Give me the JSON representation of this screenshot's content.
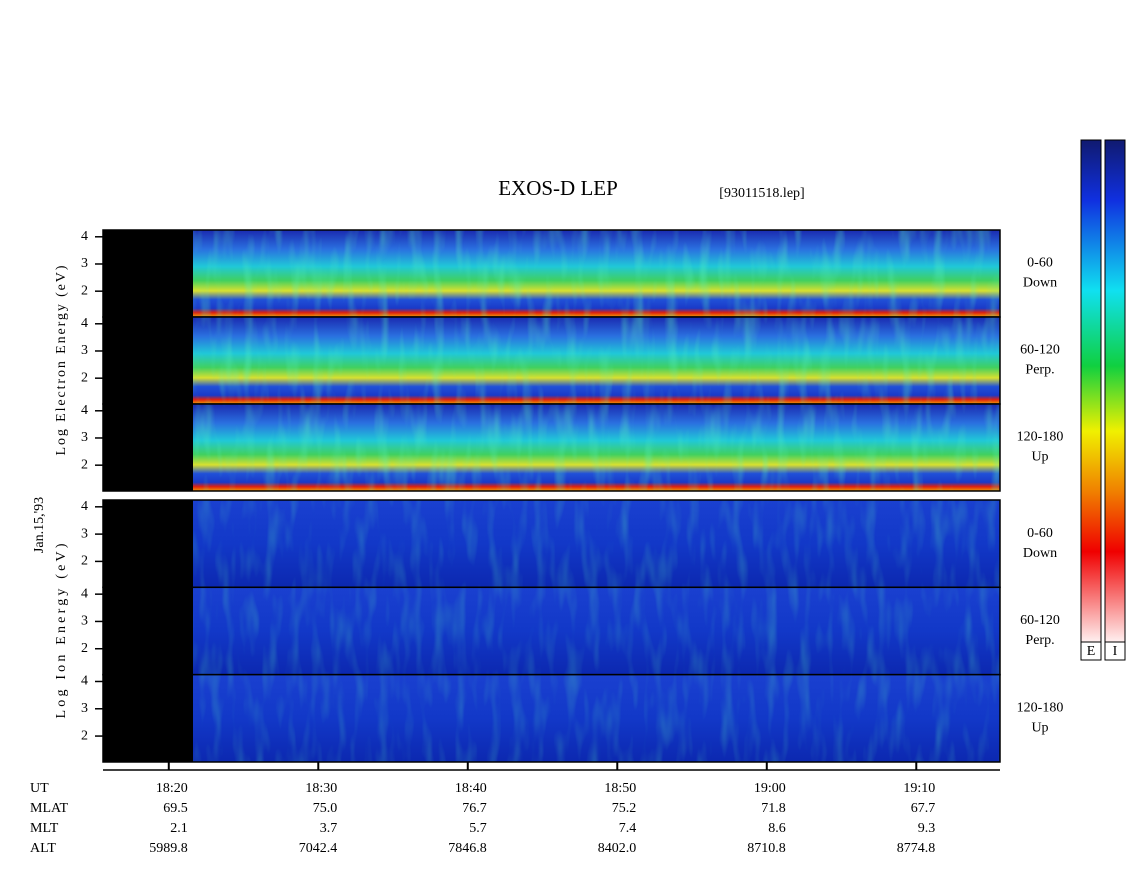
{
  "chart_data": {
    "type": "spectrogram",
    "title": "EXOS-D LEP",
    "file_label": "[93011518.lep]",
    "date_label": "Jan.15,'93",
    "xlim": [
      1095.6,
      1155.6
    ],
    "xticks": [
      {
        "value": 1100,
        "label": "18:20"
      },
      {
        "value": 1110,
        "label": "18:30"
      },
      {
        "value": 1120,
        "label": "18:40"
      },
      {
        "value": 1130,
        "label": "18:50"
      },
      {
        "value": 1140,
        "label": "19:00"
      },
      {
        "value": 1150,
        "label": "19:10"
      }
    ],
    "ylim": [
      1.05,
      4.25
    ],
    "yticks": [
      2,
      3,
      4
    ],
    "groups": [
      {
        "axis_label": "Log Electron Energy (eV)",
        "panels": [
          [
            "0-60",
            "Down"
          ],
          [
            "60-120",
            "Perp."
          ],
          [
            "120-180",
            "Up"
          ]
        ]
      },
      {
        "axis_label": "Log Ion Energy (eV)",
        "panels": [
          [
            "0-60",
            "Down"
          ],
          [
            "60-120",
            "Perp."
          ],
          [
            "120-180",
            "Up"
          ]
        ]
      }
    ],
    "colorbars": [
      "E",
      "I"
    ],
    "ephemeris": [
      {
        "label": "UT",
        "values": []
      },
      {
        "label": "MLAT",
        "values": [
          "69.5",
          "75.0",
          "76.7",
          "75.2",
          "71.8",
          "67.7"
        ]
      },
      {
        "label": "MLT",
        "values": [
          "2.1",
          "3.7",
          "5.7",
          "7.4",
          "8.6",
          "9.3"
        ]
      },
      {
        "label": "ALT",
        "values": [
          "5989.8",
          "7042.4",
          "7846.8",
          "8402.0",
          "8710.8",
          "8774.8"
        ]
      }
    ]
  }
}
